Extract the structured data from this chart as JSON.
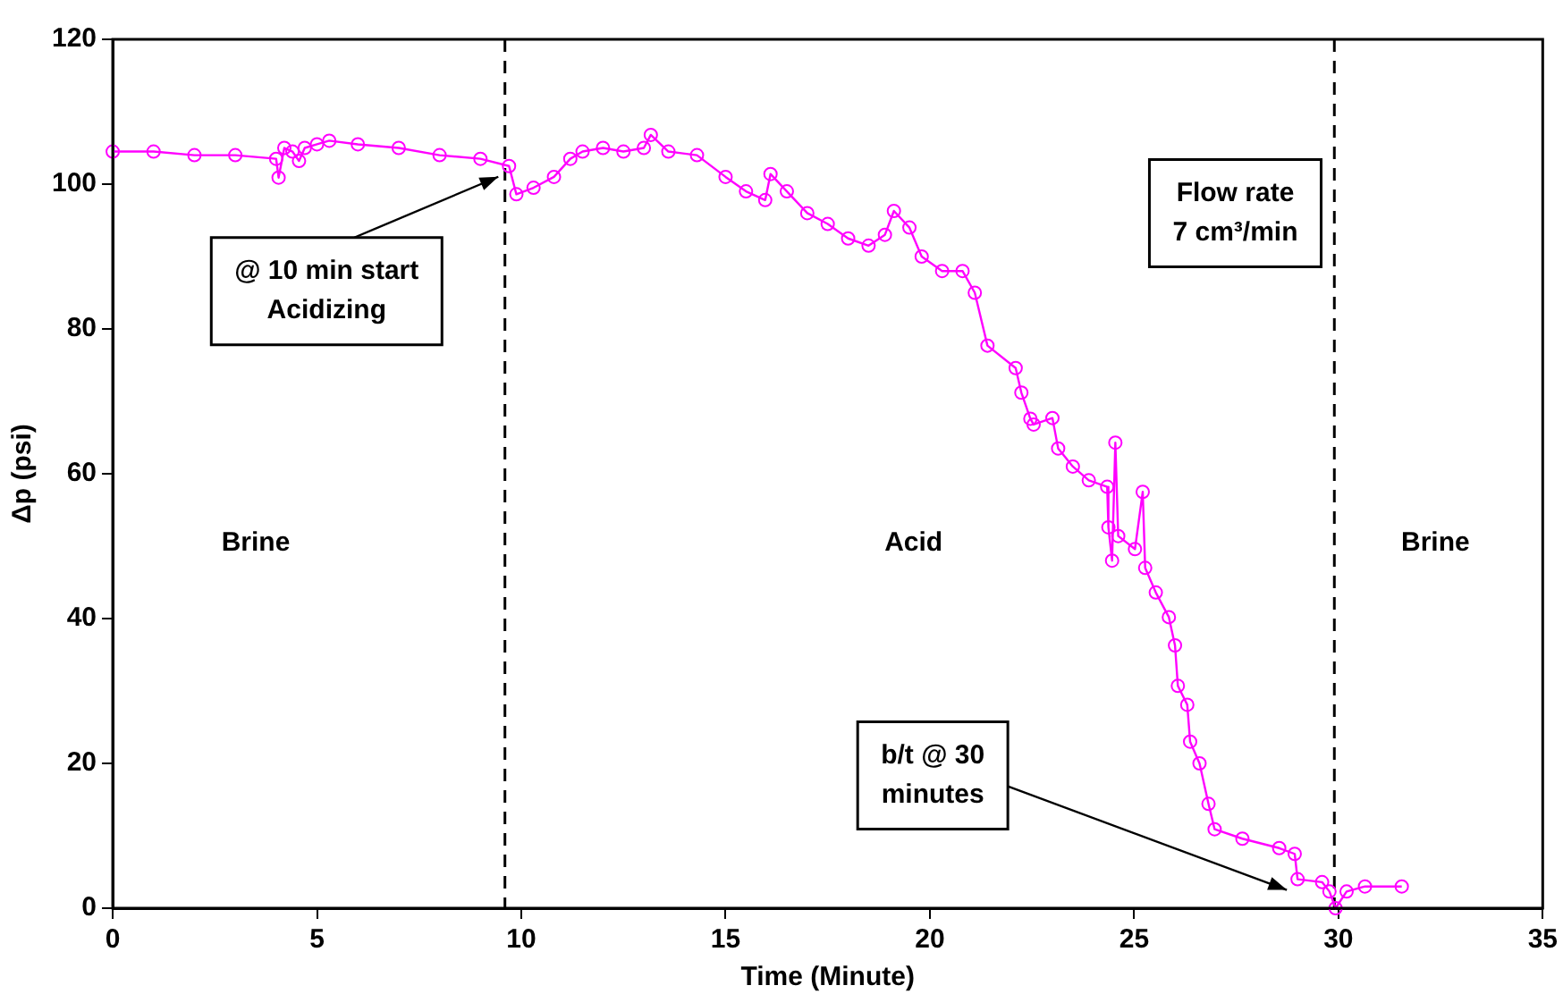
{
  "chart_data": {
    "type": "line",
    "xlabel": "Time (Minute)",
    "ylabel": "Δp (psi)",
    "xlim": [
      0,
      35
    ],
    "xticks": [
      0,
      5,
      10,
      15,
      20,
      25,
      30,
      35
    ],
    "ylim": [
      0,
      120
    ],
    "yticks": [
      0,
      20,
      40,
      60,
      80,
      100,
      120
    ],
    "grid": false,
    "legend": false,
    "marker": "circle",
    "line_style": "solid",
    "series": [
      {
        "color": "#ff00ff",
        "x": [
          0,
          1,
          2,
          3,
          4,
          4.06,
          4.2,
          4.4,
          4.56,
          4.7,
          5,
          5.3,
          6,
          7,
          8,
          9,
          9.7,
          9.88,
          10.3,
          10.8,
          11.2,
          11.5,
          12,
          12.5,
          13,
          13.17,
          13.6,
          14.3,
          15,
          15.5,
          15.97,
          16.1,
          16.5,
          17,
          17.5,
          18,
          18.5,
          18.9,
          19.12,
          19.5,
          19.8,
          20.3,
          20.8,
          21.1,
          21.41,
          22.1,
          22.24,
          22.46,
          22.54,
          23,
          23.14,
          23.5,
          23.89,
          24.34,
          24.37,
          24.46,
          24.54,
          24.61,
          25.02,
          25.21,
          25.27,
          25.53,
          25.85,
          26,
          26.07,
          26.3,
          26.37,
          26.6,
          26.82,
          26.97,
          27.65,
          28.55,
          28.93,
          29,
          29.6,
          29.78,
          29.93,
          30.2,
          30.65,
          31.55
        ],
        "values": [
          104.5,
          104.5,
          104,
          104,
          103.5,
          100.9,
          105,
          104.5,
          103.2,
          105,
          105.5,
          106,
          105.5,
          105,
          104,
          103.5,
          102.5,
          98.6,
          99.5,
          101,
          103.5,
          104.5,
          105,
          104.5,
          105,
          106.8,
          104.5,
          104,
          101,
          99,
          97.8,
          101.4,
          99,
          96,
          94.5,
          92.5,
          91.5,
          93,
          96.3,
          94,
          90,
          88,
          88,
          85,
          77.7,
          74.6,
          71.2,
          67.6,
          66.8,
          67.7,
          63.5,
          61,
          59.1,
          58.2,
          52.6,
          48,
          64.3,
          51.4,
          49.6,
          57.5,
          47,
          43.6,
          40.2,
          36.3,
          30.7,
          28.1,
          23,
          20,
          14.4,
          10.9,
          9.6,
          8.3,
          7.5,
          4,
          3.6,
          2.3,
          0,
          2.3,
          3,
          3
        ]
      }
    ],
    "ref_lines": [
      {
        "axis": "x",
        "value": 9.6,
        "line_style": "dashed",
        "color": "#000000"
      },
      {
        "axis": "x",
        "value": 29.9,
        "line_style": "dashed",
        "color": "#000000"
      }
    ],
    "annotations": [
      {
        "text": "@ 10 min start\nAcidizing",
        "x": 9.7,
        "y": 102.5
      },
      {
        "text": "b/t @ 30\nminutes",
        "x": 29,
        "y": 4
      },
      "Brine",
      "Acid",
      "Brine",
      "Flow rate\n7 cm³/min"
    ]
  }
}
